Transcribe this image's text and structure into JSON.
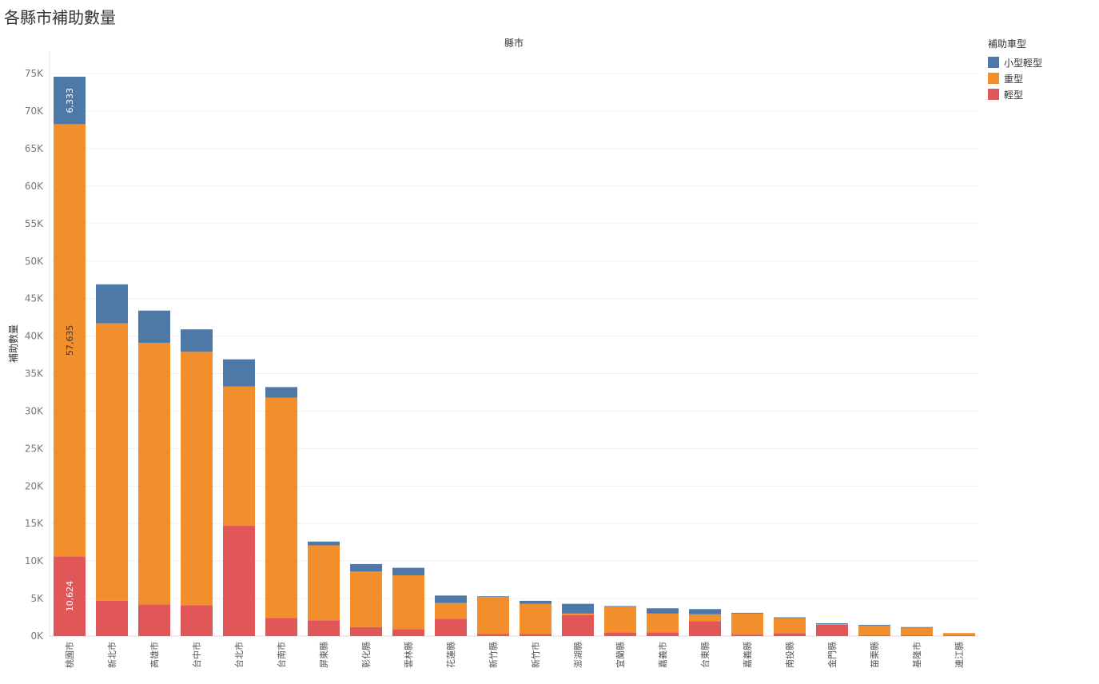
{
  "chart_data": {
    "type": "bar",
    "stacked": true,
    "title": "各縣市補助數量",
    "xlabel": "縣市",
    "ylabel": "補助數量",
    "ylim": [
      0,
      78000
    ],
    "yticks": [
      0,
      5000,
      10000,
      15000,
      20000,
      25000,
      30000,
      35000,
      40000,
      45000,
      50000,
      55000,
      60000,
      65000,
      70000,
      75000
    ],
    "ytick_labels": [
      "0K",
      "5K",
      "10K",
      "15K",
      "20K",
      "25K",
      "30K",
      "35K",
      "40K",
      "45K",
      "50K",
      "55K",
      "60K",
      "65K",
      "70K",
      "75K"
    ],
    "grid": true,
    "legend_title": "補助車型",
    "legend_position": "top-right",
    "categories": [
      "桃園市",
      "新北市",
      "高雄市",
      "台中市",
      "台北市",
      "台南市",
      "屏東縣",
      "彰化縣",
      "雲林縣",
      "花蓮縣",
      "新竹縣",
      "新竹市",
      "澎湖縣",
      "宜蘭縣",
      "嘉義市",
      "台東縣",
      "嘉義縣",
      "南投縣",
      "金門縣",
      "苗栗縣",
      "基隆市",
      "連江縣"
    ],
    "series": [
      {
        "name": "輕型",
        "color": "#e15759",
        "values": [
          10624,
          4700,
          4200,
          4100,
          14700,
          2400,
          2100,
          1200,
          900,
          2300,
          300,
          300,
          2800,
          500,
          500,
          2000,
          200,
          400,
          1500,
          100,
          100,
          100
        ]
      },
      {
        "name": "重型",
        "color": "#f28e2b",
        "values": [
          57635,
          37000,
          34900,
          33800,
          18600,
          29400,
          10000,
          7400,
          7200,
          2100,
          4900,
          4000,
          200,
          3400,
          2500,
          900,
          2800,
          2000,
          100,
          1300,
          1000,
          300
        ]
      },
      {
        "name": "小型輕型",
        "color": "#4e79a7",
        "values": [
          6333,
          5200,
          4300,
          3000,
          3600,
          1400,
          500,
          1000,
          1000,
          1000,
          100,
          400,
          1300,
          100,
          700,
          700,
          100,
          100,
          100,
          100,
          100,
          0
        ]
      }
    ],
    "data_labels": [
      {
        "category": "桃園市",
        "series": "小型輕型",
        "text": "6,333"
      },
      {
        "category": "桃園市",
        "series": "重型",
        "text": "57,635"
      },
      {
        "category": "桃園市",
        "series": "輕型",
        "text": "10,624"
      }
    ]
  }
}
